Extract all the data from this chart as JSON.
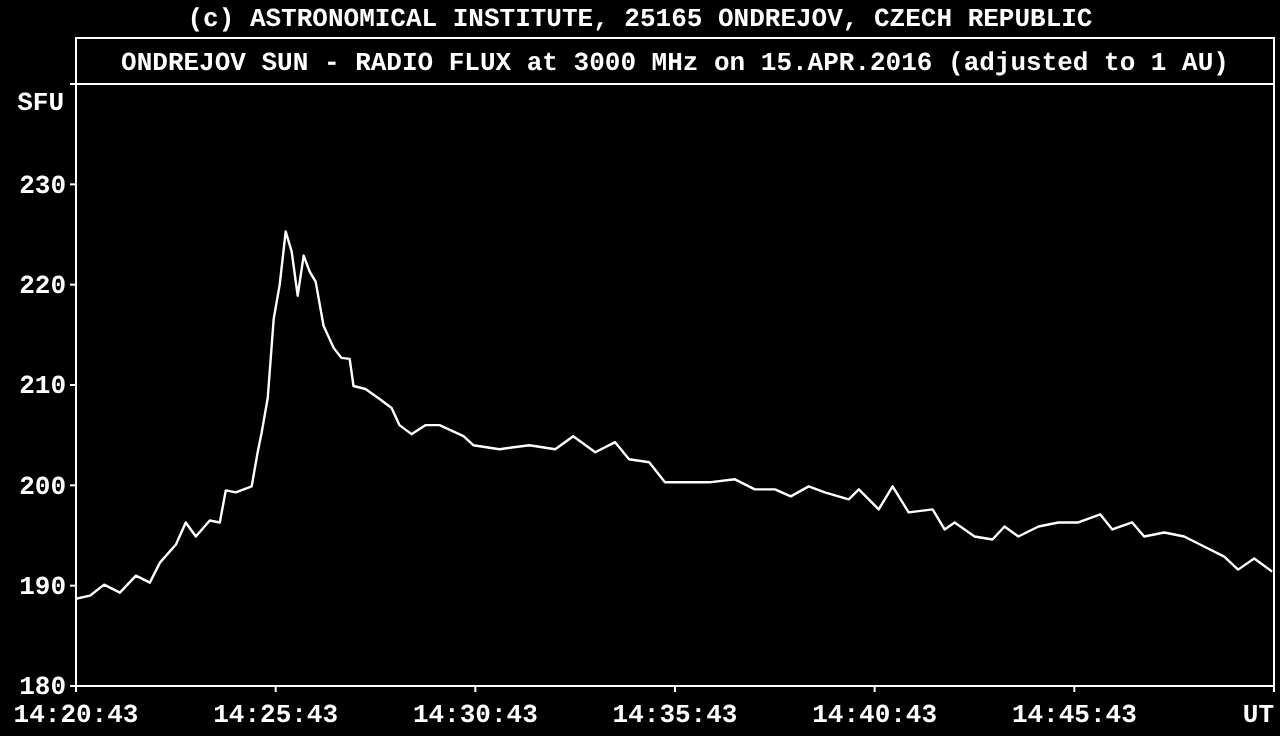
{
  "chart_data": {
    "type": "line",
    "title": "ONDREJOV SUN - RADIO FLUX at 3000 MHz on 15.APR.2016 (adjusted to 1 AU)",
    "ylabel": "SFU",
    "annotations": [
      "(c) ASTRONOMICAL INSTITUTE, 25165 ONDREJOV, CZECH REPUBLIC"
    ],
    "xlim": [
      14.34528,
      14.84528
    ],
    "xticks": [
      {
        "value": 14.34528,
        "label": "14:20:43"
      },
      {
        "value": 14.42861,
        "label": "14:25:43"
      },
      {
        "value": 14.51194,
        "label": "14:30:43"
      },
      {
        "value": 14.59528,
        "label": "14:35:43"
      },
      {
        "value": 14.67861,
        "label": "14:40:43"
      },
      {
        "value": 14.76194,
        "label": "14:45:43"
      },
      {
        "value": 14.84528,
        "label": "UT"
      }
    ],
    "ylim": [
      180,
      240
    ],
    "yticks": [
      180,
      190,
      200,
      210,
      220,
      230
    ],
    "grid": false,
    "marker": "none",
    "line_style": "solid",
    "series": [
      {
        "color": "#ffffff",
        "x": [
          14.3453,
          14.3511,
          14.357,
          14.3636,
          14.3703,
          14.3761,
          14.3803,
          14.387,
          14.3911,
          14.3953,
          14.4011,
          14.4053,
          14.4078,
          14.412,
          14.4186,
          14.4211,
          14.4228,
          14.4253,
          14.4278,
          14.4303,
          14.4328,
          14.4353,
          14.4378,
          14.4403,
          14.4428,
          14.4453,
          14.4486,
          14.4528,
          14.4561,
          14.4595,
          14.4611,
          14.4661,
          14.472,
          14.477,
          14.4803,
          14.4853,
          14.4911,
          14.497,
          14.507,
          14.5111,
          14.522,
          14.5345,
          14.5453,
          14.5528,
          14.562,
          14.5703,
          14.5761,
          14.5845,
          14.5911,
          14.6011,
          14.6095,
          14.6203,
          14.6286,
          14.637,
          14.6436,
          14.6511,
          14.6578,
          14.6678,
          14.672,
          14.6803,
          14.6861,
          14.6928,
          14.7028,
          14.7078,
          14.712,
          14.7203,
          14.7278,
          14.7328,
          14.7386,
          14.747,
          14.7553,
          14.7636,
          14.7728,
          14.7778,
          14.7861,
          14.7911,
          14.7995,
          14.8078,
          14.8161,
          14.8245,
          14.8303,
          14.837,
          14.8445
        ],
        "values": [
          188.7,
          189,
          190.1,
          189.3,
          191,
          190.3,
          192.3,
          194.1,
          196.3,
          194.9,
          196.5,
          196.3,
          199.5,
          199.3,
          199.9,
          203.3,
          205.3,
          208.7,
          216.6,
          220,
          225.3,
          223.3,
          218.9,
          222.9,
          221.3,
          220.3,
          215.9,
          213.7,
          212.7,
          212.6,
          209.9,
          209.6,
          208.6,
          207.7,
          206,
          205.1,
          206,
          206,
          204.9,
          204,
          203.6,
          204,
          203.6,
          204.9,
          203.3,
          204.3,
          202.6,
          202.3,
          200.3,
          200.3,
          200.3,
          200.6,
          199.6,
          199.6,
          198.9,
          199.9,
          199.3,
          198.6,
          199.6,
          197.6,
          199.9,
          197.3,
          197.6,
          195.6,
          196.3,
          194.9,
          194.6,
          195.9,
          194.9,
          195.9,
          196.3,
          196.3,
          197.1,
          195.6,
          196.3,
          194.9,
          195.3,
          194.9,
          193.9,
          192.9,
          191.6,
          192.7,
          191.4
        ]
      }
    ]
  }
}
